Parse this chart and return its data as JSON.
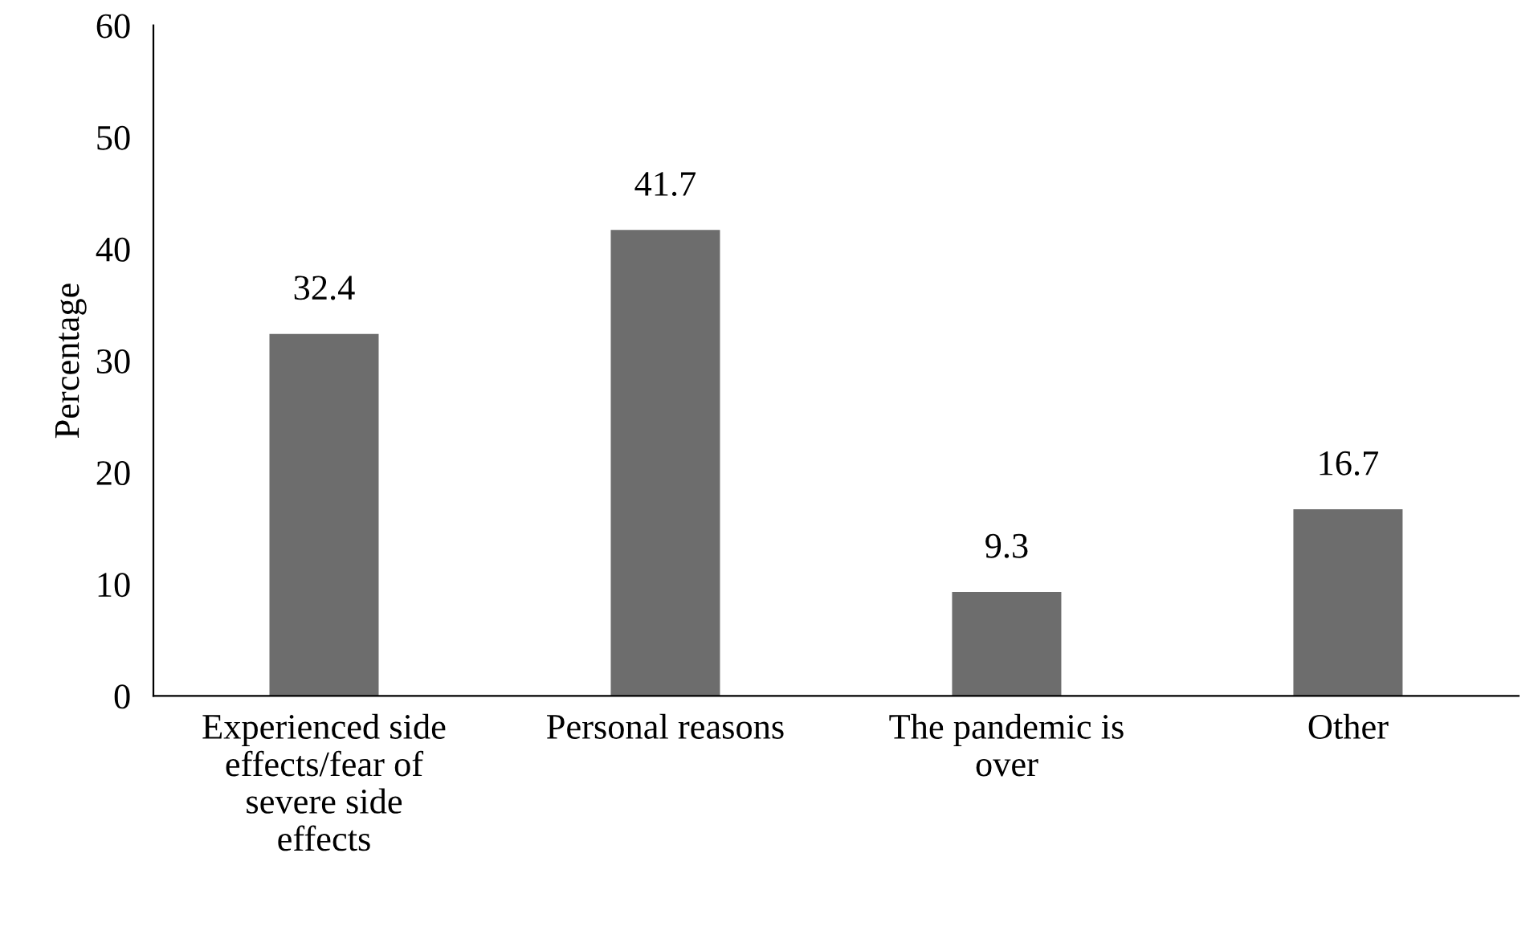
{
  "chart_data": {
    "type": "bar",
    "ylabel": "Percentage",
    "categories": [
      "Experienced side effects/fear of severe side effects",
      "Personal reasons",
      "The pandemic is over",
      "Other"
    ],
    "values": [
      32.4,
      41.7,
      9.3,
      16.7
    ],
    "color": "#6d6d6d",
    "ylim": [
      0,
      60
    ],
    "yticks": [
      0,
      10,
      20,
      30,
      40,
      50,
      60
    ],
    "data_labels": true,
    "grid": false
  }
}
